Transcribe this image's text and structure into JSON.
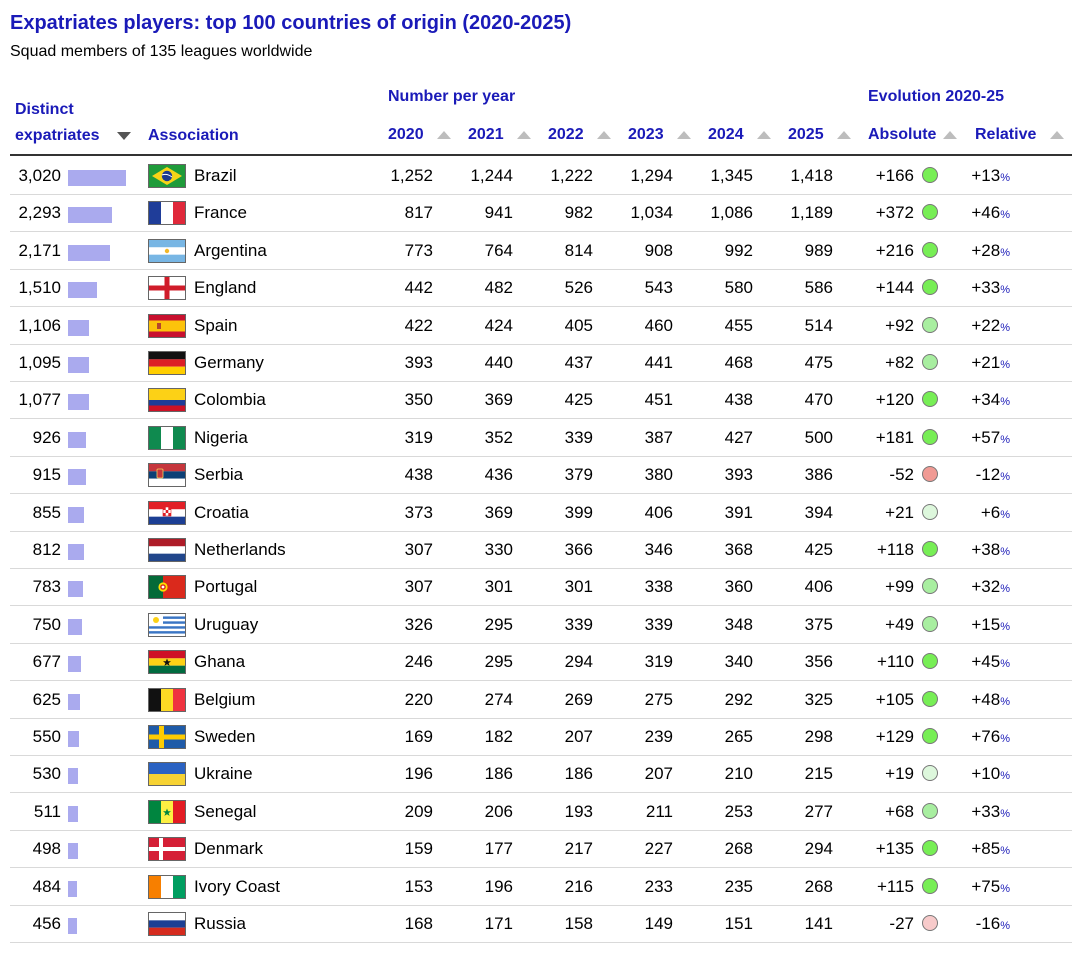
{
  "title": "Expatriates players: top 100 countries of origin (2020-2025)",
  "subtitle": "Squad members of 135 leagues worldwide",
  "headers": {
    "distinct_line1": "Distinct",
    "distinct_line2": "expatriates",
    "association": "Association",
    "number_per_year": "Number per year",
    "evolution": "Evolution 2020-25",
    "years": [
      "2020",
      "2021",
      "2022",
      "2023",
      "2024",
      "2025"
    ],
    "absolute": "Absolute",
    "relative": "Relative"
  },
  "colors": {
    "accent": "#1a1ab8",
    "bar": "#aaaaee",
    "dot_strong_up": "#77ee55",
    "dot_mid_up": "#a8eea0",
    "dot_light_up": "#ddf7dc",
    "dot_strong_down": "#f09a94",
    "dot_light_down": "#f7caca"
  },
  "rows": [
    {
      "distinct": "3,020",
      "distinct_value": 3020,
      "country": "Brazil",
      "flag": "brazil",
      "years": [
        "1,252",
        "1,244",
        "1,222",
        "1,294",
        "1,345",
        "1,418"
      ],
      "absolute": "+166",
      "relative": "+13",
      "trend": "strong-up"
    },
    {
      "distinct": "2,293",
      "distinct_value": 2293,
      "country": "France",
      "flag": "france",
      "years": [
        "817",
        "941",
        "982",
        "1,034",
        "1,086",
        "1,189"
      ],
      "absolute": "+372",
      "relative": "+46",
      "trend": "strong-up"
    },
    {
      "distinct": "2,171",
      "distinct_value": 2171,
      "country": "Argentina",
      "flag": "argentina",
      "years": [
        "773",
        "764",
        "814",
        "908",
        "992",
        "989"
      ],
      "absolute": "+216",
      "relative": "+28",
      "trend": "strong-up"
    },
    {
      "distinct": "1,510",
      "distinct_value": 1510,
      "country": "England",
      "flag": "england",
      "years": [
        "442",
        "482",
        "526",
        "543",
        "580",
        "586"
      ],
      "absolute": "+144",
      "relative": "+33",
      "trend": "strong-up"
    },
    {
      "distinct": "1,106",
      "distinct_value": 1106,
      "country": "Spain",
      "flag": "spain",
      "years": [
        "422",
        "424",
        "405",
        "460",
        "455",
        "514"
      ],
      "absolute": "+92",
      "relative": "+22",
      "trend": "mid-up"
    },
    {
      "distinct": "1,095",
      "distinct_value": 1095,
      "country": "Germany",
      "flag": "germany",
      "years": [
        "393",
        "440",
        "437",
        "441",
        "468",
        "475"
      ],
      "absolute": "+82",
      "relative": "+21",
      "trend": "mid-up"
    },
    {
      "distinct": "1,077",
      "distinct_value": 1077,
      "country": "Colombia",
      "flag": "colombia",
      "years": [
        "350",
        "369",
        "425",
        "451",
        "438",
        "470"
      ],
      "absolute": "+120",
      "relative": "+34",
      "trend": "strong-up"
    },
    {
      "distinct": "926",
      "distinct_value": 926,
      "country": "Nigeria",
      "flag": "nigeria",
      "years": [
        "319",
        "352",
        "339",
        "387",
        "427",
        "500"
      ],
      "absolute": "+181",
      "relative": "+57",
      "trend": "strong-up"
    },
    {
      "distinct": "915",
      "distinct_value": 915,
      "country": "Serbia",
      "flag": "serbia",
      "years": [
        "438",
        "436",
        "379",
        "380",
        "393",
        "386"
      ],
      "absolute": "-52",
      "relative": "-12",
      "trend": "strong-down"
    },
    {
      "distinct": "855",
      "distinct_value": 855,
      "country": "Croatia",
      "flag": "croatia",
      "years": [
        "373",
        "369",
        "399",
        "406",
        "391",
        "394"
      ],
      "absolute": "+21",
      "relative": "+6",
      "trend": "light-up"
    },
    {
      "distinct": "812",
      "distinct_value": 812,
      "country": "Netherlands",
      "flag": "netherlands",
      "years": [
        "307",
        "330",
        "366",
        "346",
        "368",
        "425"
      ],
      "absolute": "+118",
      "relative": "+38",
      "trend": "strong-up"
    },
    {
      "distinct": "783",
      "distinct_value": 783,
      "country": "Portugal",
      "flag": "portugal",
      "years": [
        "307",
        "301",
        "301",
        "338",
        "360",
        "406"
      ],
      "absolute": "+99",
      "relative": "+32",
      "trend": "mid-up"
    },
    {
      "distinct": "750",
      "distinct_value": 750,
      "country": "Uruguay",
      "flag": "uruguay",
      "years": [
        "326",
        "295",
        "339",
        "339",
        "348",
        "375"
      ],
      "absolute": "+49",
      "relative": "+15",
      "trend": "mid-up"
    },
    {
      "distinct": "677",
      "distinct_value": 677,
      "country": "Ghana",
      "flag": "ghana",
      "years": [
        "246",
        "295",
        "294",
        "319",
        "340",
        "356"
      ],
      "absolute": "+110",
      "relative": "+45",
      "trend": "strong-up"
    },
    {
      "distinct": "625",
      "distinct_value": 625,
      "country": "Belgium",
      "flag": "belgium",
      "years": [
        "220",
        "274",
        "269",
        "275",
        "292",
        "325"
      ],
      "absolute": "+105",
      "relative": "+48",
      "trend": "strong-up"
    },
    {
      "distinct": "550",
      "distinct_value": 550,
      "country": "Sweden",
      "flag": "sweden",
      "years": [
        "169",
        "182",
        "207",
        "239",
        "265",
        "298"
      ],
      "absolute": "+129",
      "relative": "+76",
      "trend": "strong-up"
    },
    {
      "distinct": "530",
      "distinct_value": 530,
      "country": "Ukraine",
      "flag": "ukraine",
      "years": [
        "196",
        "186",
        "186",
        "207",
        "210",
        "215"
      ],
      "absolute": "+19",
      "relative": "+10",
      "trend": "light-up"
    },
    {
      "distinct": "511",
      "distinct_value": 511,
      "country": "Senegal",
      "flag": "senegal",
      "years": [
        "209",
        "206",
        "193",
        "211",
        "253",
        "277"
      ],
      "absolute": "+68",
      "relative": "+33",
      "trend": "mid-up"
    },
    {
      "distinct": "498",
      "distinct_value": 498,
      "country": "Denmark",
      "flag": "denmark",
      "years": [
        "159",
        "177",
        "217",
        "227",
        "268",
        "294"
      ],
      "absolute": "+135",
      "relative": "+85",
      "trend": "strong-up"
    },
    {
      "distinct": "484",
      "distinct_value": 484,
      "country": "Ivory Coast",
      "flag": "ivory-coast",
      "years": [
        "153",
        "196",
        "216",
        "233",
        "235",
        "268"
      ],
      "absolute": "+115",
      "relative": "+75",
      "trend": "strong-up"
    },
    {
      "distinct": "456",
      "distinct_value": 456,
      "country": "Russia",
      "flag": "russia",
      "years": [
        "168",
        "171",
        "158",
        "149",
        "151",
        "141"
      ],
      "absolute": "-27",
      "relative": "-16",
      "trend": "light-down"
    }
  ],
  "percent_sign": "%"
}
